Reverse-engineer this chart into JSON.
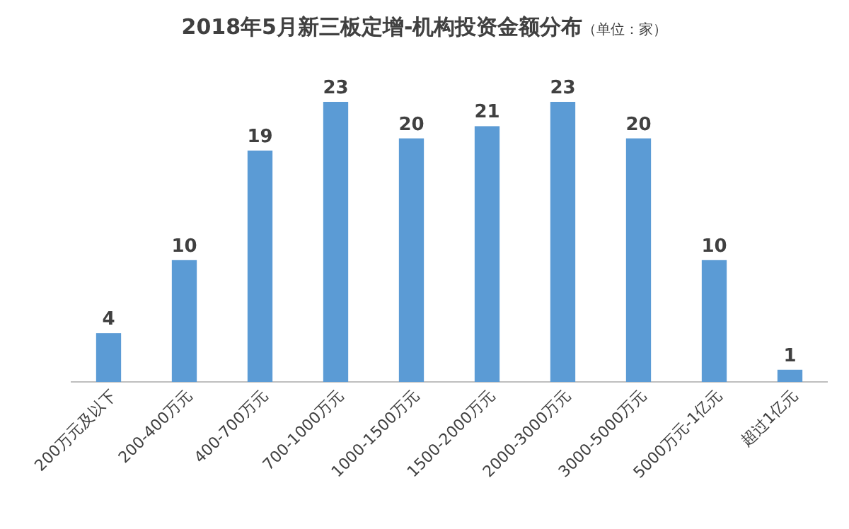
{
  "chart_data": {
    "type": "bar",
    "title": "2018年5月新三板定增-机构投资金额分布",
    "subtitle": "（单位：家）",
    "categories": [
      "200万元及以下",
      "200-400万元",
      "400-700万元",
      "700-1000万元",
      "1000-1500万元",
      "1500-2000万元",
      "2000-3000万元",
      "3000-5000万元",
      "5000万元-1亿元",
      "超过1亿元"
    ],
    "values": [
      4,
      10,
      19,
      23,
      20,
      21,
      23,
      20,
      10,
      1
    ],
    "color": "#5b9bd5",
    "data_labels": true
  }
}
